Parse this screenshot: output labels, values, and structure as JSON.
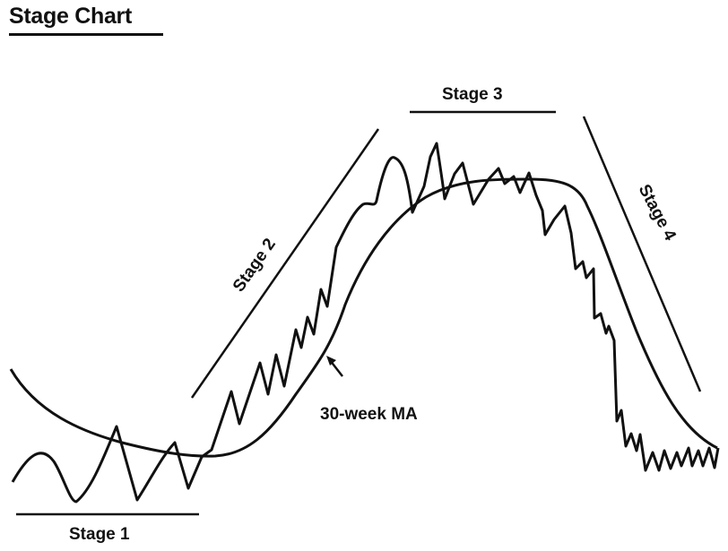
{
  "title": "Stage Chart",
  "labels": {
    "stage1": "Stage 1",
    "stage2": "Stage 2",
    "stage3": "Stage 3",
    "stage4": "Stage 4",
    "ma": "30-week MA"
  },
  "colors": {
    "ink": "#111111",
    "background": "#ffffff"
  }
}
